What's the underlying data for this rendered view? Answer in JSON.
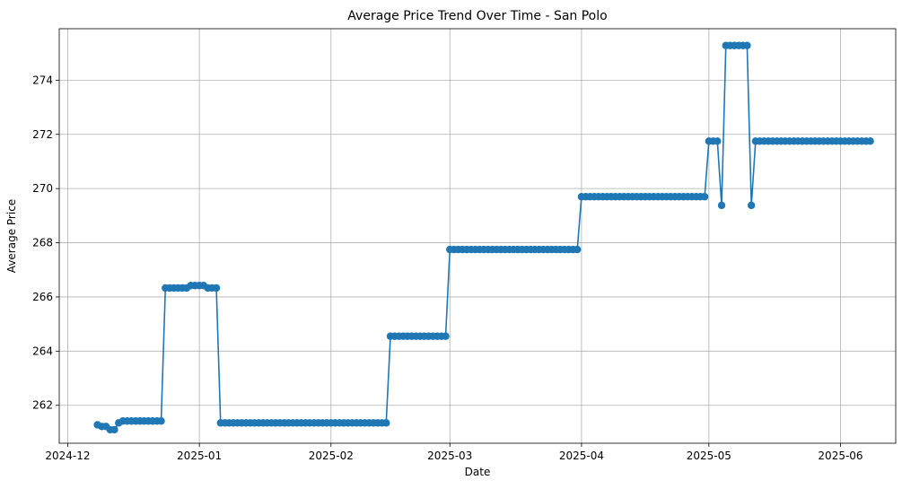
{
  "chart_data": {
    "type": "line",
    "title": "Average Price Trend Over Time - San Polo",
    "xlabel": "Date",
    "ylabel": "Average Price",
    "grid": true,
    "x_ticks": [
      "2024-12",
      "2025-01",
      "2025-02",
      "2025-03",
      "2025-04",
      "2025-05",
      "2025-06"
    ],
    "y_ticks": [
      262,
      264,
      266,
      268,
      270,
      272,
      274
    ],
    "xlim": [
      "2024-11-29",
      "2025-06-14"
    ],
    "ylim": [
      260.6,
      275.9
    ],
    "color": "#1f77b4",
    "series": [
      {
        "segments": [
          {
            "start": "2024-12-08",
            "end": "2024-12-08",
            "value": 261.28
          },
          {
            "start": "2024-12-09",
            "end": "2024-12-10",
            "value": 261.22
          },
          {
            "start": "2024-12-11",
            "end": "2024-12-12",
            "value": 261.1
          },
          {
            "start": "2024-12-13",
            "end": "2024-12-13",
            "value": 261.35
          },
          {
            "start": "2024-12-14",
            "end": "2024-12-23",
            "value": 261.42
          },
          {
            "start": "2024-12-24",
            "end": "2024-12-29",
            "value": 266.33
          },
          {
            "start": "2024-12-30",
            "end": "2025-01-02",
            "value": 266.42
          },
          {
            "start": "2025-01-03",
            "end": "2025-01-05",
            "value": 266.33
          },
          {
            "start": "2025-01-06",
            "end": "2025-02-14",
            "value": 261.35
          },
          {
            "start": "2025-02-15",
            "end": "2025-02-28",
            "value": 264.55
          },
          {
            "start": "2025-03-01",
            "end": "2025-03-31",
            "value": 267.75
          },
          {
            "start": "2025-04-01",
            "end": "2025-04-30",
            "value": 269.7
          },
          {
            "start": "2025-05-01",
            "end": "2025-05-03",
            "value": 271.75
          },
          {
            "start": "2025-05-04",
            "end": "2025-05-04",
            "value": 269.38
          },
          {
            "start": "2025-05-05",
            "end": "2025-05-10",
            "value": 275.28
          },
          {
            "start": "2025-05-11",
            "end": "2025-05-11",
            "value": 269.38
          },
          {
            "start": "2025-05-12",
            "end": "2025-06-08",
            "value": 271.75
          }
        ]
      }
    ]
  }
}
